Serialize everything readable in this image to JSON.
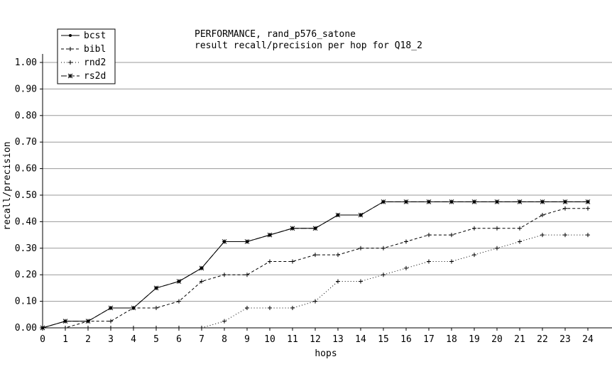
{
  "chart_data": {
    "type": "line",
    "title": "PERFORMANCE, rand_p576_satone",
    "subtitle": "result recall/precision per hop for Q18_2",
    "xlabel": "hops",
    "ylabel": "recall/precision",
    "xlim": [
      0,
      24
    ],
    "ylim": [
      0,
      1.05
    ],
    "grid": true,
    "legend_position": "top-left",
    "x": [
      0,
      1,
      2,
      3,
      4,
      5,
      6,
      7,
      8,
      9,
      10,
      11,
      12,
      13,
      14,
      15,
      16,
      17,
      18,
      19,
      20,
      21,
      22,
      23,
      24
    ],
    "x_ticks": [
      "0",
      "1",
      "2",
      "3",
      "4",
      "5",
      "6",
      "7",
      "8",
      "9",
      "10",
      "11",
      "12",
      "13",
      "14",
      "15",
      "16",
      "17",
      "18",
      "19",
      "20",
      "21",
      "22",
      "23",
      "24"
    ],
    "y_ticks": [
      {
        "value": 0.0,
        "label": "0.00"
      },
      {
        "value": 0.1,
        "label": "0.10"
      },
      {
        "value": 0.2,
        "label": "0.20"
      },
      {
        "value": 0.3,
        "label": "0.30"
      },
      {
        "value": 0.4,
        "label": "0.40"
      },
      {
        "value": 0.5,
        "label": "0.50"
      },
      {
        "value": 0.6,
        "label": "0.60"
      },
      {
        "value": 0.7,
        "label": "0.70"
      },
      {
        "value": 0.8,
        "label": "0.80"
      },
      {
        "value": 0.9,
        "label": "0.90"
      },
      {
        "value": 1.0,
        "label": "1.00"
      }
    ],
    "series": [
      {
        "name": "bcst",
        "marker": "dot",
        "dash": "solid",
        "values": [
          0,
          0.025,
          0.025,
          0.075,
          0.075,
          0.15,
          0.175,
          0.225,
          0.325,
          0.325,
          0.35,
          0.375,
          0.375,
          0.425,
          0.425,
          0.475,
          0.475,
          0.475,
          0.475,
          0.475,
          0.475,
          0.475,
          0.475,
          0.475,
          0.475
        ]
      },
      {
        "name": "bibl",
        "marker": "plus",
        "dash": "dashed",
        "values": [
          0,
          0,
          0.025,
          0.025,
          0.075,
          0.075,
          0.1,
          0.175,
          0.2,
          0.2,
          0.25,
          0.25,
          0.275,
          0.275,
          0.3,
          0.3,
          0.325,
          0.35,
          0.35,
          0.375,
          0.375,
          0.375,
          0.425,
          0.45,
          0.45
        ]
      },
      {
        "name": "rnd2",
        "marker": "plus",
        "dash": "dotted",
        "values": [
          0,
          0,
          0,
          0,
          0,
          0,
          0,
          0,
          0.025,
          0.075,
          0.075,
          0.075,
          0.1,
          0.175,
          0.175,
          0.2,
          0.225,
          0.25,
          0.25,
          0.275,
          0.3,
          0.325,
          0.35,
          0.35,
          0.35
        ]
      },
      {
        "name": "rs2d",
        "marker": "star",
        "dash": "longdash",
        "values": [
          0,
          0.025,
          0.025,
          0.075,
          0.075,
          0.15,
          0.175,
          0.225,
          0.325,
          0.325,
          0.35,
          0.375,
          0.375,
          0.425,
          0.425,
          0.475,
          0.475,
          0.475,
          0.475,
          0.475,
          0.475,
          0.475,
          0.475,
          0.475,
          0.475
        ]
      }
    ]
  }
}
